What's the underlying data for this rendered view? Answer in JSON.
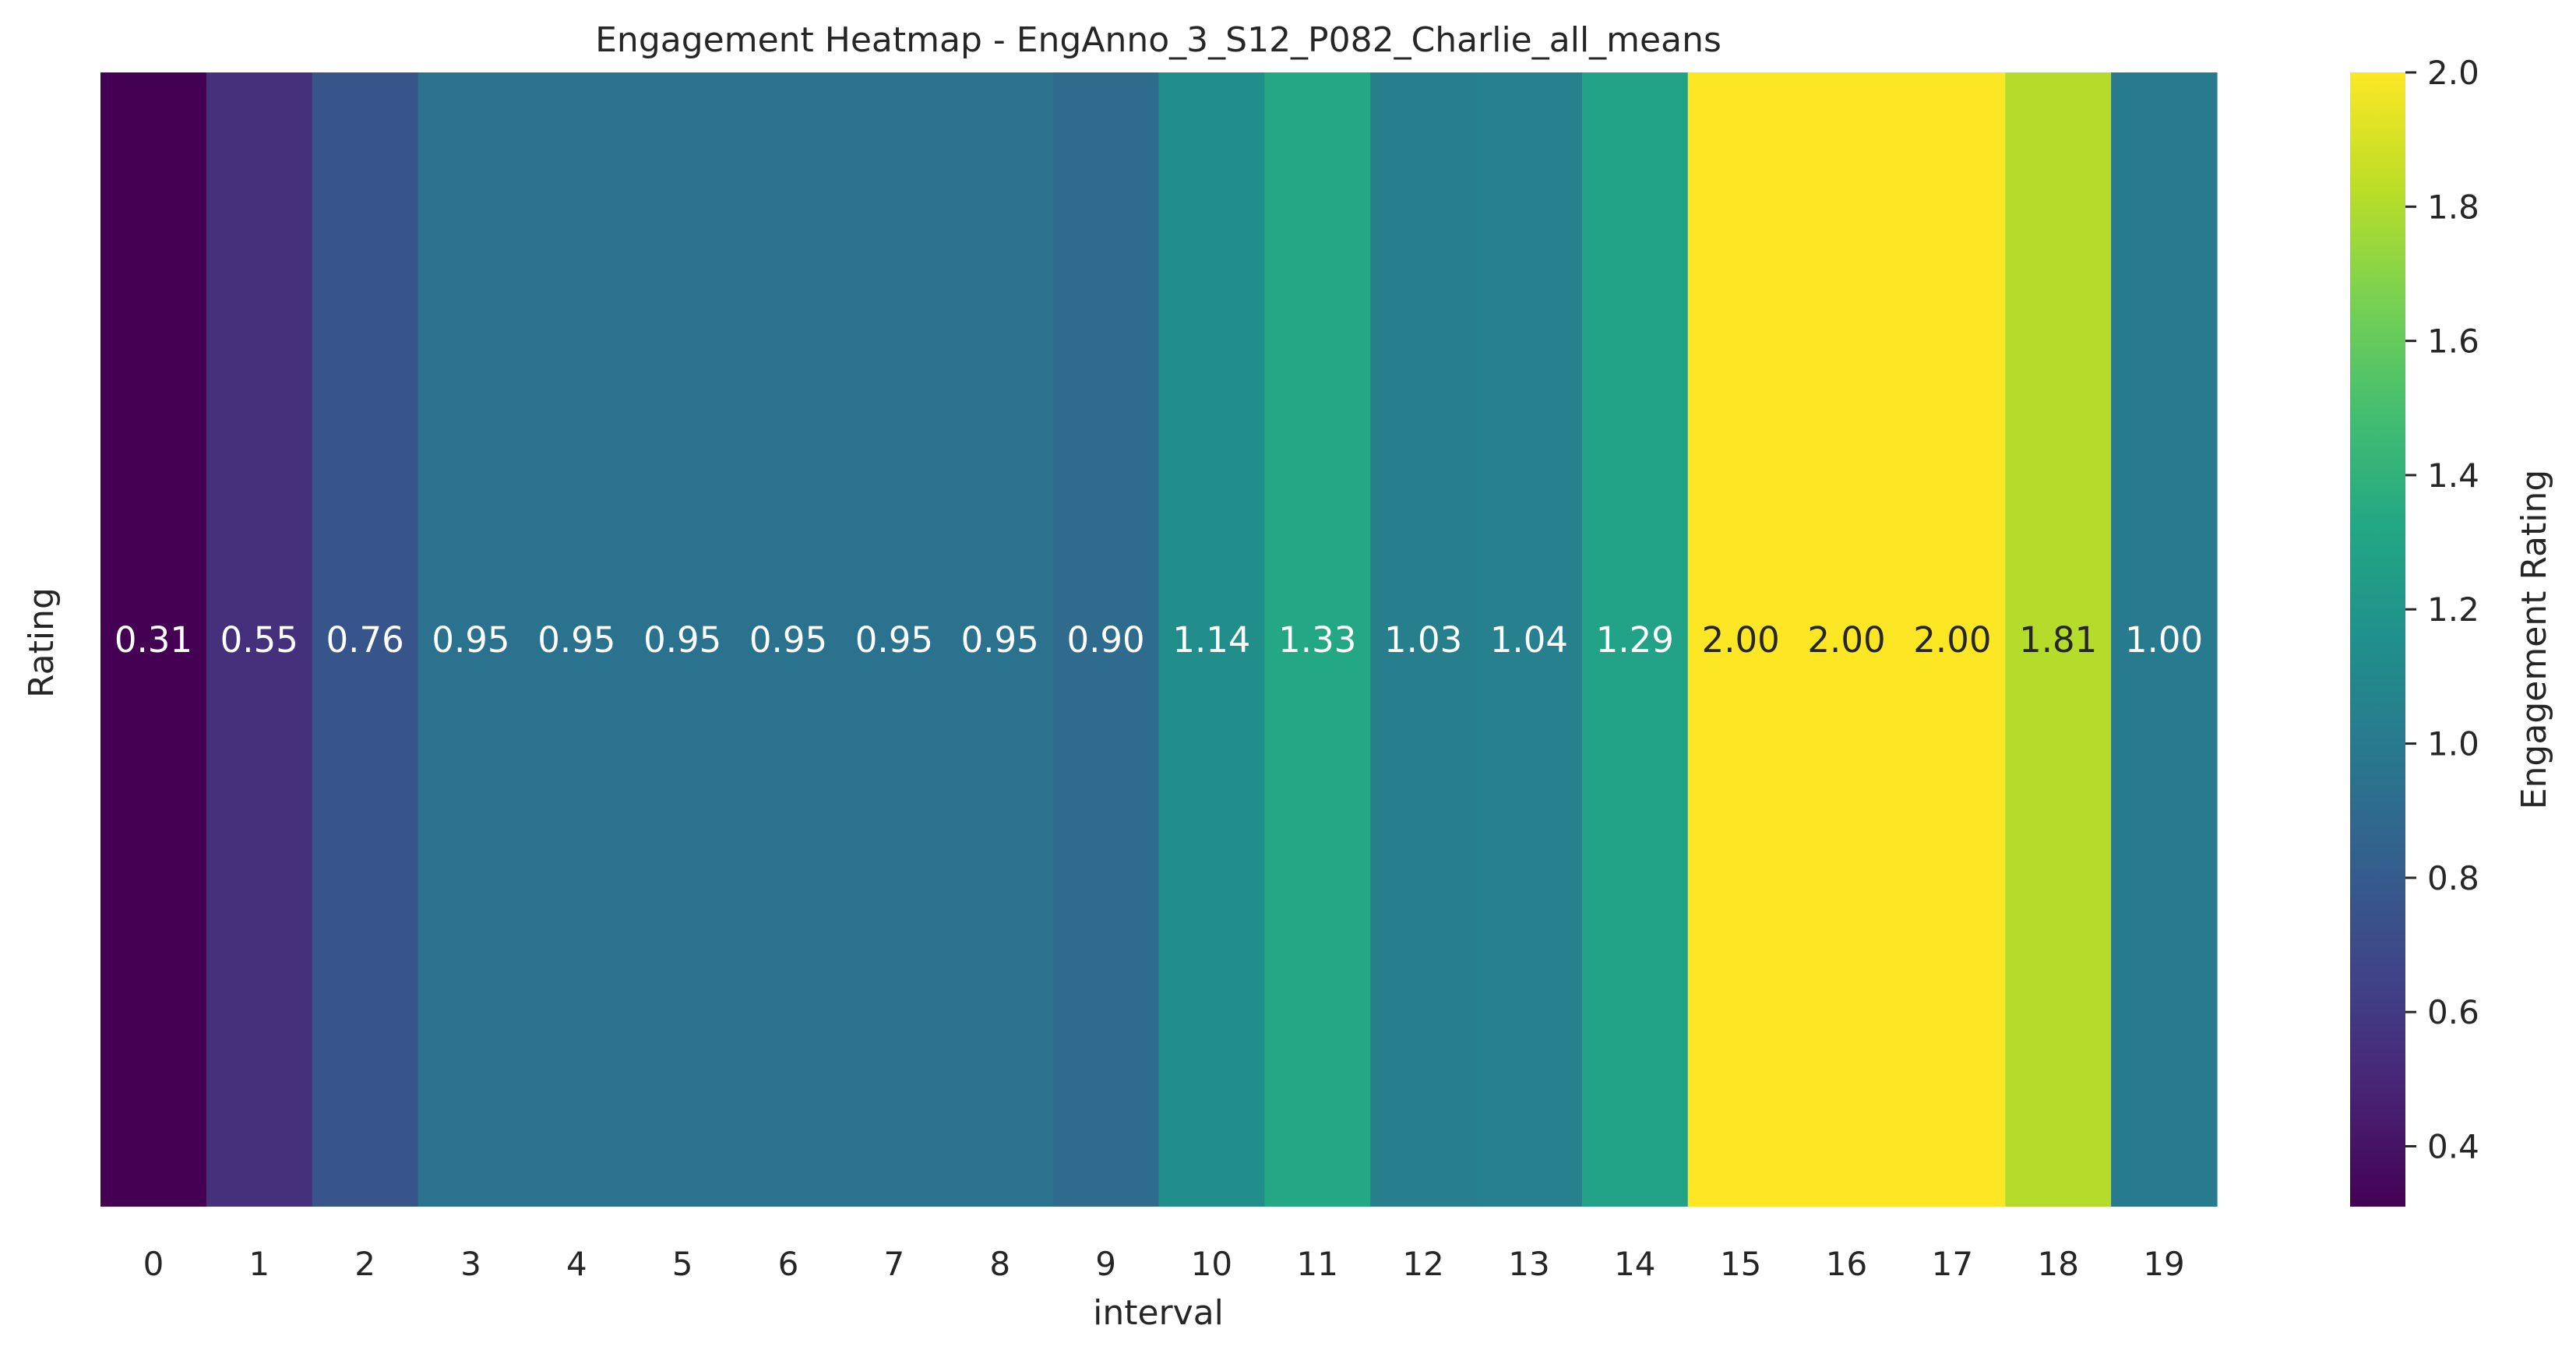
{
  "chart_data": {
    "type": "heatmap",
    "title": "Engagement Heatmap -  EngAnno_3_S12_P082_Charlie_all_means",
    "xlabel": "interval",
    "ylabel": "Rating",
    "colorbar_label": "Engagement Rating",
    "colormap": "viridis",
    "x": [
      "0",
      "1",
      "2",
      "3",
      "4",
      "5",
      "6",
      "7",
      "8",
      "9",
      "10",
      "11",
      "12",
      "13",
      "14",
      "15",
      "16",
      "17",
      "18",
      "19"
    ],
    "values": [
      0.31,
      0.55,
      0.76,
      0.95,
      0.95,
      0.95,
      0.95,
      0.95,
      0.95,
      0.9,
      1.14,
      1.33,
      1.03,
      1.04,
      1.29,
      2.0,
      2.0,
      2.0,
      1.81,
      1.0
    ],
    "annotations": [
      "0.31",
      "0.55",
      "0.76",
      "0.95",
      "0.95",
      "0.95",
      "0.95",
      "0.95",
      "0.95",
      "0.90",
      "1.14",
      "1.33",
      "1.03",
      "1.04",
      "1.29",
      "2.00",
      "2.00",
      "2.00",
      "1.81",
      "1.00"
    ],
    "color_range": [
      0.31,
      2.0
    ],
    "colorbar_ticks": [
      "0.4",
      "0.6",
      "0.8",
      "1.0",
      "1.2",
      "1.4",
      "1.6",
      "1.8",
      "2.0"
    ],
    "colorbar_tick_values": [
      0.4,
      0.6,
      0.8,
      1.0,
      1.2,
      1.4,
      1.6,
      1.8,
      2.0
    ],
    "grid": false,
    "legend": "colorbar-right"
  }
}
